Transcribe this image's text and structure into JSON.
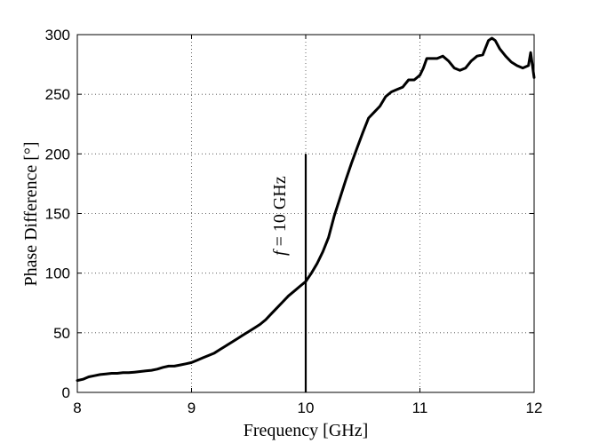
{
  "chart_data": {
    "type": "line",
    "title": "",
    "xlabel": "Frequency [GHz]",
    "ylabel": "Phase Difference [°]",
    "xlim": [
      8,
      12
    ],
    "ylim": [
      0,
      300
    ],
    "xticks": [
      8,
      9,
      10,
      11,
      12
    ],
    "yticks": [
      0,
      50,
      100,
      150,
      200,
      250,
      300
    ],
    "grid": true,
    "legend": "none",
    "line_color": "#000000",
    "series": [
      {
        "x": [
          8.0,
          8.05,
          8.1,
          8.15,
          8.2,
          8.25,
          8.3,
          8.35,
          8.4,
          8.45,
          8.5,
          8.55,
          8.6,
          8.65,
          8.7,
          8.75,
          8.8,
          8.85,
          8.9,
          8.95,
          9.0,
          9.05,
          9.1,
          9.15,
          9.2,
          9.25,
          9.3,
          9.35,
          9.4,
          9.45,
          9.5,
          9.55,
          9.6,
          9.65,
          9.7,
          9.75,
          9.8,
          9.85,
          9.9,
          9.95,
          10.0,
          10.05,
          10.1,
          10.15,
          10.2,
          10.25,
          10.3,
          10.35,
          10.4,
          10.45,
          10.5,
          10.55,
          10.6,
          10.65,
          10.7,
          10.75,
          10.8,
          10.85,
          10.9,
          10.95,
          11.0,
          11.03,
          11.06,
          11.1,
          11.15,
          11.2,
          11.25,
          11.3,
          11.35,
          11.4,
          11.45,
          11.5,
          11.55,
          11.6,
          11.63,
          11.66,
          11.7,
          11.75,
          11.8,
          11.85,
          11.9,
          11.95,
          11.97,
          12.0
        ],
        "y": [
          10,
          11,
          13,
          14,
          15,
          15.5,
          16,
          16,
          16.5,
          16.5,
          17,
          17.5,
          18,
          18.5,
          19.5,
          21,
          22,
          22,
          23,
          24,
          25,
          27,
          29,
          31,
          33,
          36,
          39,
          42,
          45,
          48,
          51,
          54,
          57,
          61,
          66,
          71,
          76,
          81,
          85,
          89,
          93,
          100,
          108,
          118,
          130,
          148,
          163,
          178,
          192,
          205,
          218,
          230,
          235,
          240,
          248,
          252,
          254,
          256,
          262,
          262,
          266,
          272,
          280,
          280,
          280,
          282,
          278,
          272,
          270,
          272,
          278,
          282,
          283,
          295,
          297,
          295,
          288,
          282,
          277,
          274,
          272,
          274,
          285,
          264
        ]
      }
    ],
    "annotations": [
      {
        "type": "vline",
        "x": 10,
        "y_from": 0,
        "y_to": 200
      },
      {
        "type": "text",
        "italic": "f",
        "rest": "= 10 GHz",
        "x": 9.82,
        "y": 148,
        "rotation": -90
      }
    ]
  }
}
